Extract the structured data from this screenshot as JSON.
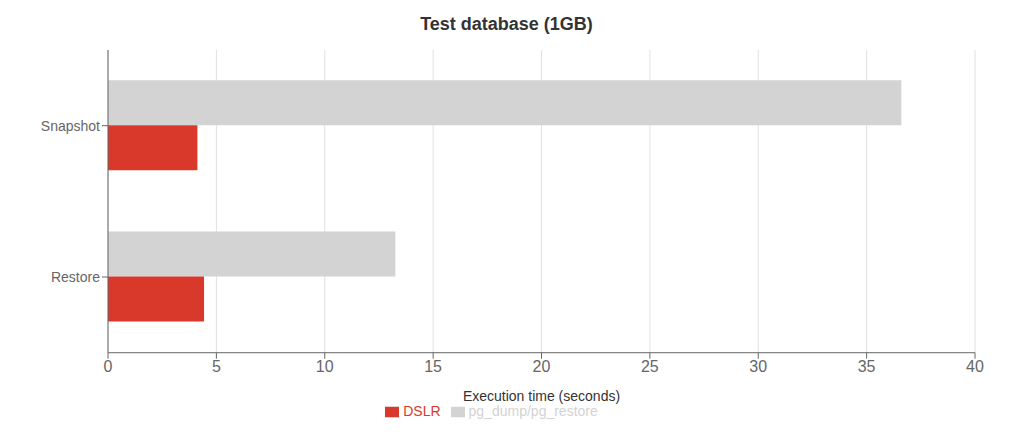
{
  "chart_data": {
    "type": "bar",
    "orientation": "horizontal",
    "title": "Test database (1GB)",
    "xlabel": "Execution time (seconds)",
    "categories": [
      "Restore",
      "Snapshot"
    ],
    "series": [
      {
        "name": "pg_dump/pg_restore",
        "color": "#d3d3d3",
        "values": [
          13.257,
          36.602
        ]
      },
      {
        "name": "DSLR",
        "color": "#d9392a",
        "values": [
          4.431,
          4.125
        ]
      }
    ],
    "xlim": [
      0,
      40
    ],
    "xticks": [
      0,
      5,
      10,
      15,
      20,
      25,
      30,
      35,
      40
    ],
    "grid": true,
    "legend": "bottom"
  }
}
